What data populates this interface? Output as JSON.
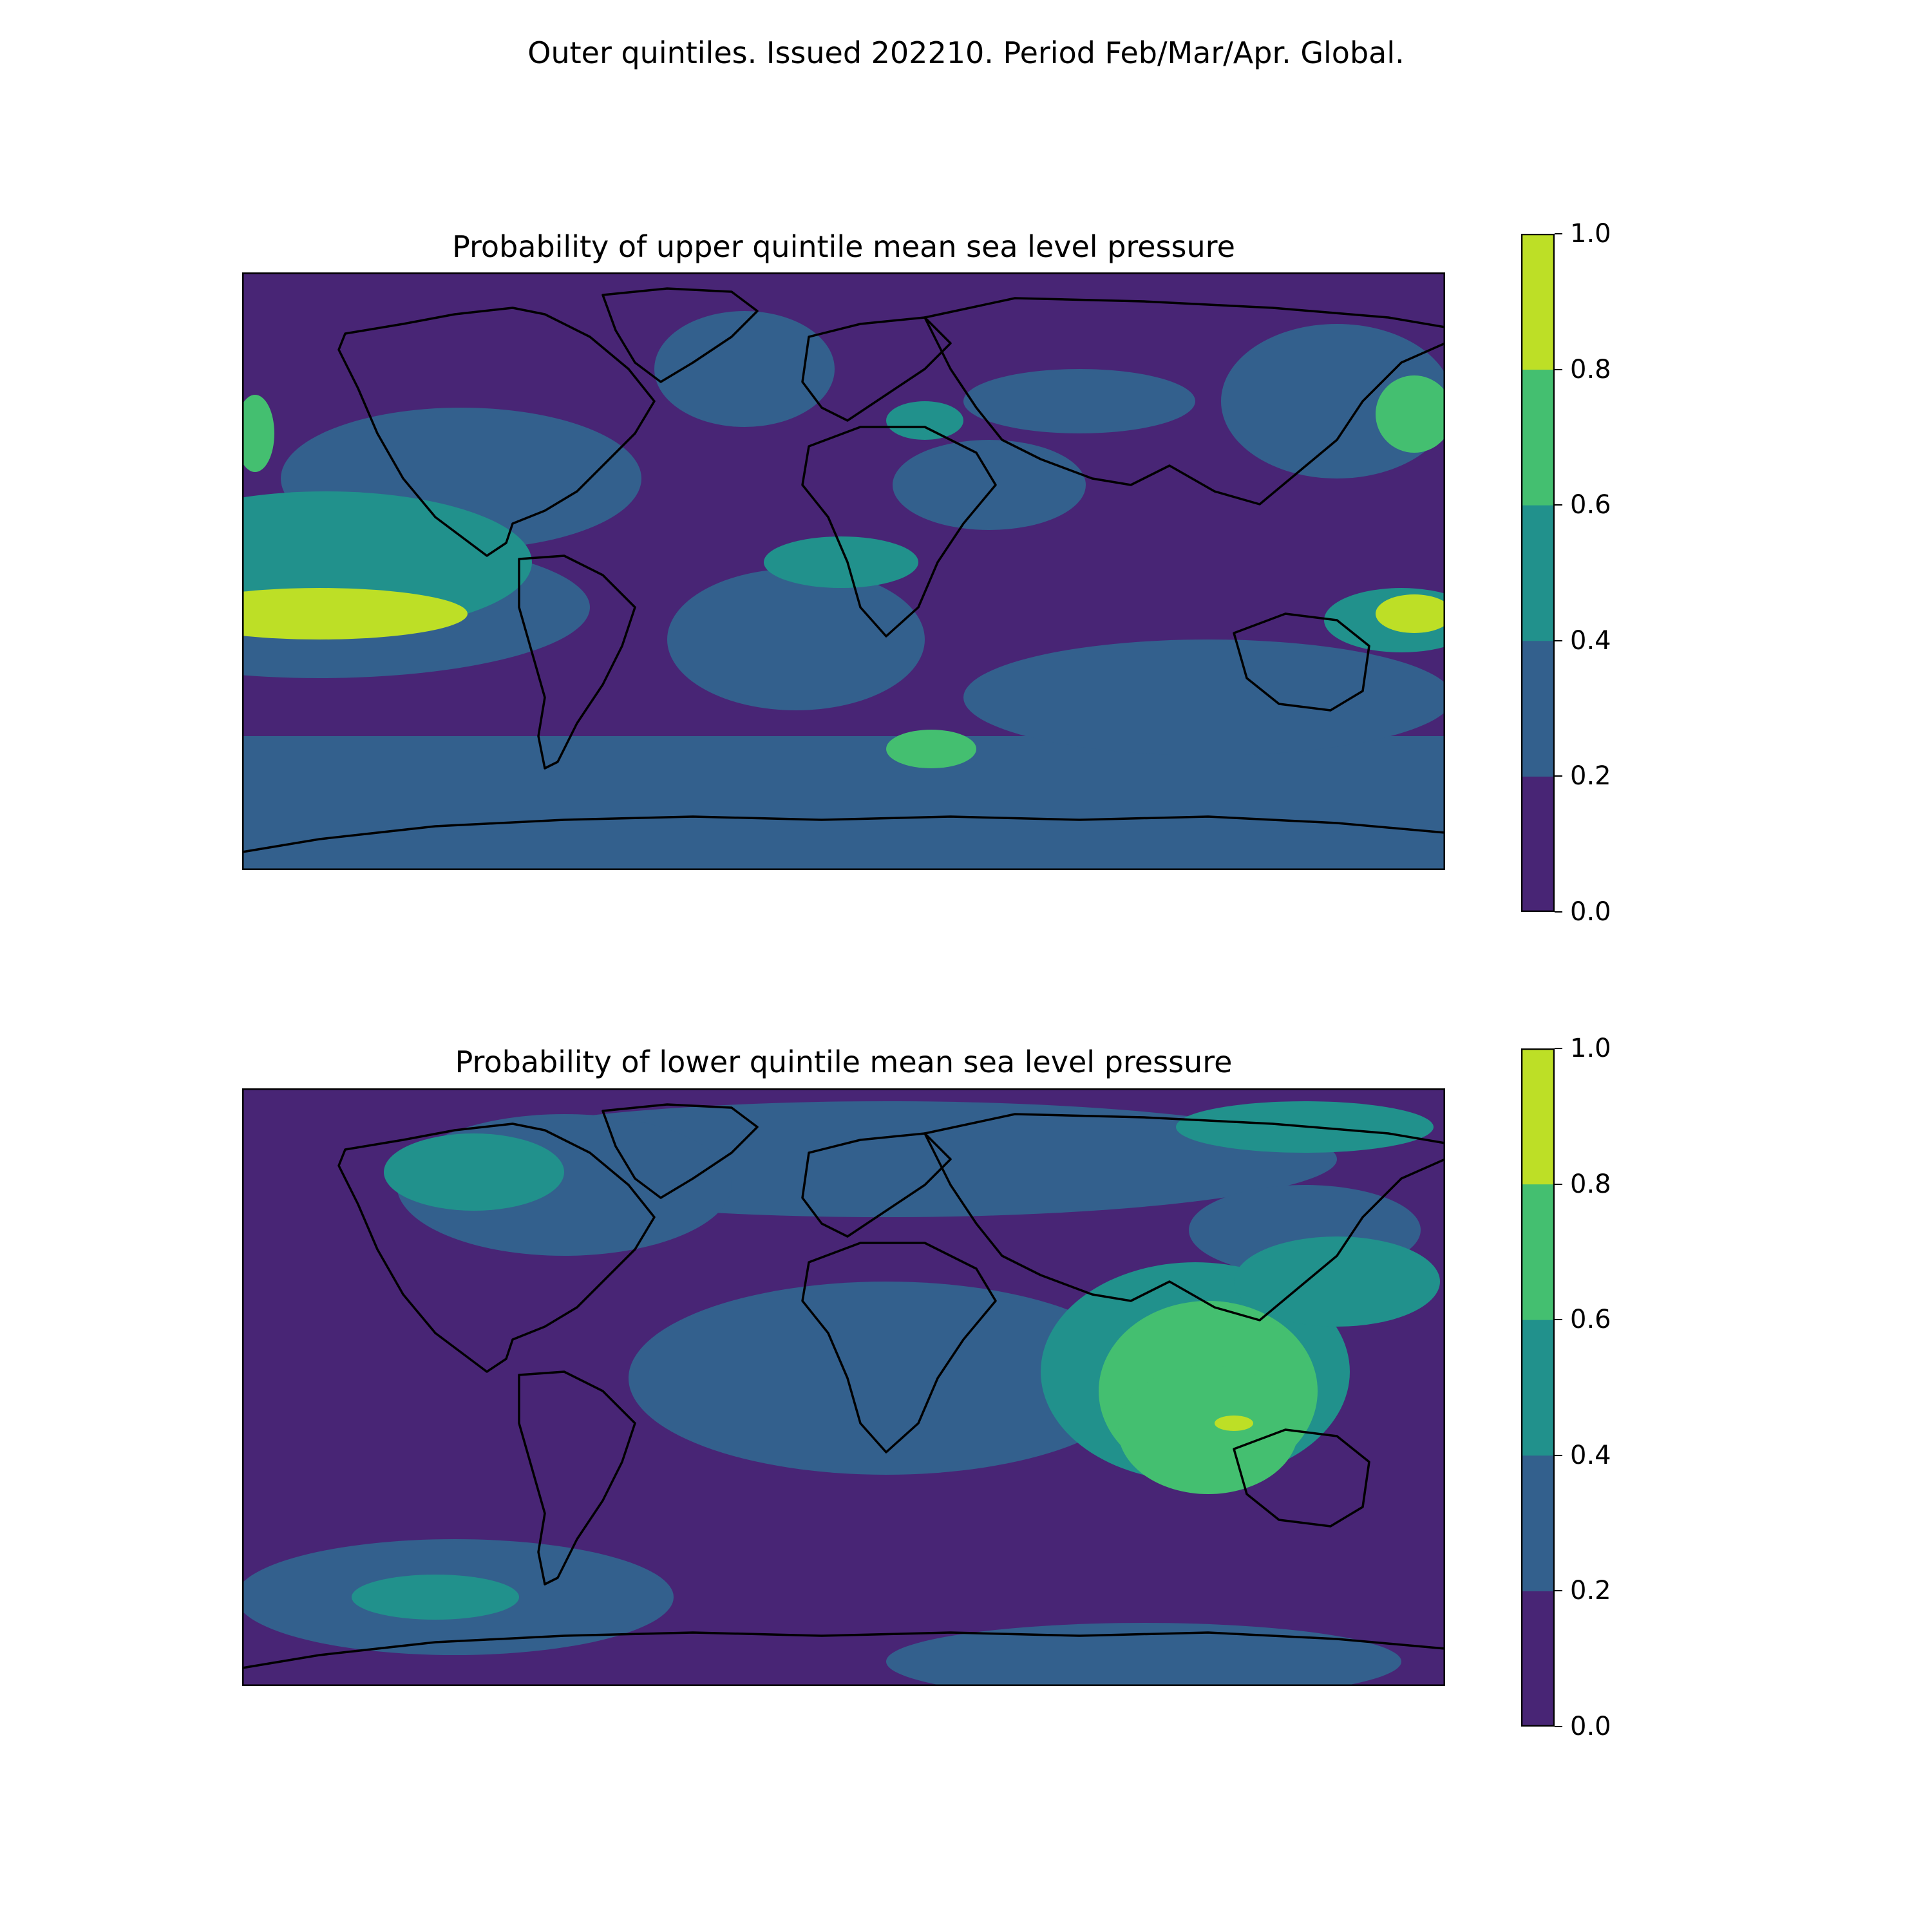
{
  "figure": {
    "suptitle": "Outer quintiles. Issued 202210. Period Feb/Mar/Apr. Global."
  },
  "colormap": {
    "levels": [
      0.0,
      0.2,
      0.4,
      0.6,
      0.8,
      1.0
    ],
    "colors": [
      "#482575",
      "#33608d",
      "#21918c",
      "#44bf70",
      "#bddf26"
    ],
    "tick_labels": [
      "0.0",
      "0.2",
      "0.4",
      "0.6",
      "0.8",
      "1.0"
    ],
    "coast_color": "#000000"
  },
  "panels": [
    {
      "id": "upper",
      "title": "Probability of upper quintile mean sea level pressure",
      "background_level": 0,
      "features": [
        {
          "region": "Arctic / northern ocean",
          "level": 0
        },
        {
          "region": "Southern Ocean band",
          "level": 1
        },
        {
          "region": "North Pacific subtropical belt",
          "level": 1
        },
        {
          "region": "Eastern tropical Pacific core",
          "level": 4
        },
        {
          "region": "Eastern tropical Pacific surround",
          "level": 2
        },
        {
          "region": "Western tropical Pacific (east of New Guinea)",
          "level": 4
        },
        {
          "region": "South Atlantic off Argentina",
          "level": 3
        },
        {
          "region": "Eastern Mediterranean / Black Sea",
          "level": 2
        },
        {
          "region": "Northwest Pacific",
          "level": 3
        }
      ]
    },
    {
      "id": "lower",
      "title": "Probability of lower quintile mean sea level pressure",
      "background_level": 0,
      "features": [
        {
          "region": "Arctic Russia coast",
          "level": 2
        },
        {
          "region": "Western Canada",
          "level": 2
        },
        {
          "region": "Atlantic / Africa band",
          "level": 1
        },
        {
          "region": "Maritime continent",
          "level": 3
        },
        {
          "region": "Eastern Indian Ocean",
          "level": 3
        },
        {
          "region": "Indonesia small core",
          "level": 4
        },
        {
          "region": "South Pacific mid-latitudes",
          "level": 1
        },
        {
          "region": "South Pacific small patch",
          "level": 2
        }
      ]
    }
  ]
}
